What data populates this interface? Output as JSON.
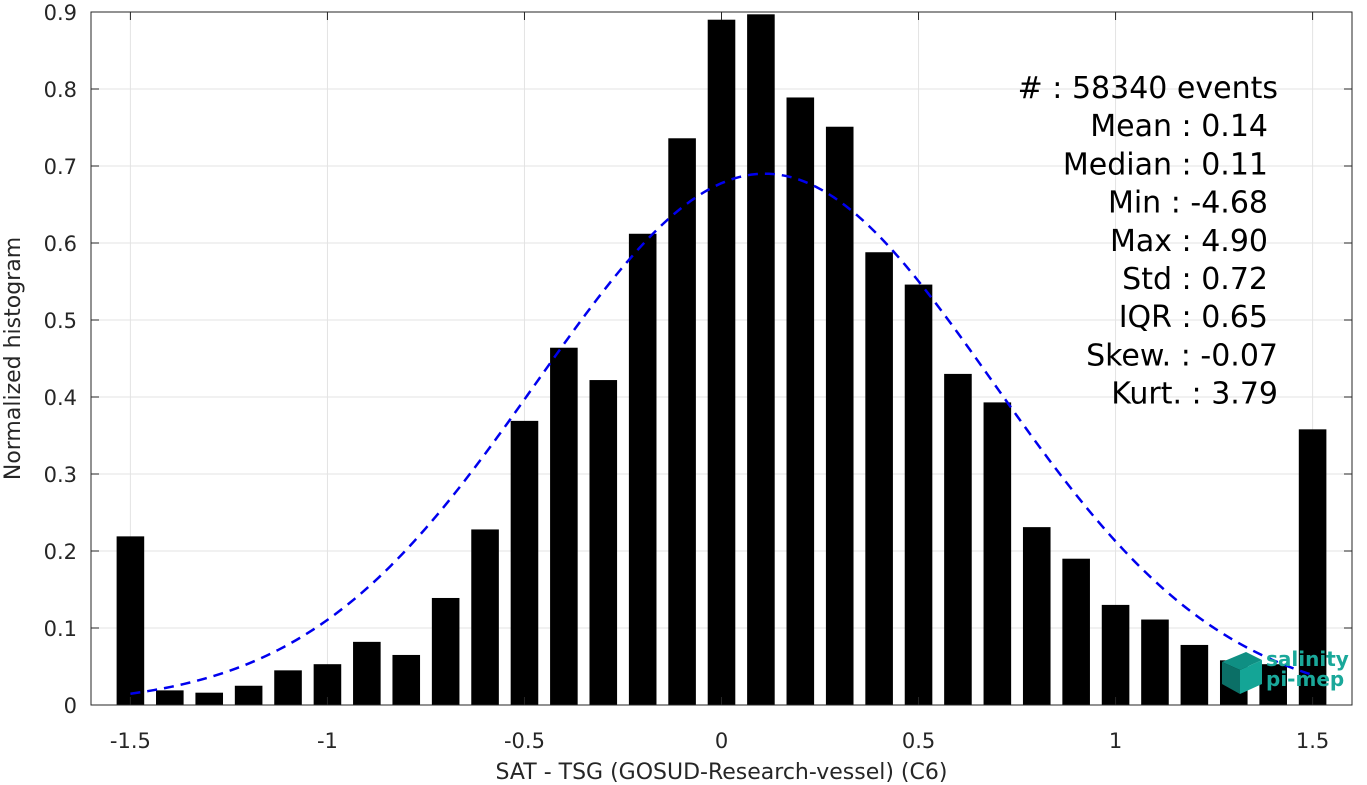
{
  "chart_data": {
    "type": "bar",
    "xlabel": "SAT - TSG (GOSUD-Research-vessel) (C6)",
    "ylabel": "Normalized histogram",
    "xlim": [
      -1.6,
      1.6
    ],
    "ylim": [
      0,
      0.9
    ],
    "x_ticks": [
      "-1.5",
      "-1",
      "-0.5",
      "0",
      "0.5",
      "1",
      "1.5"
    ],
    "x_tick_values": [
      -1.5,
      -1,
      -0.5,
      0,
      0.5,
      1,
      1.5
    ],
    "y_ticks": [
      "0",
      "0.1",
      "0.2",
      "0.3",
      "0.4",
      "0.5",
      "0.6",
      "0.7",
      "0.8",
      "0.9"
    ],
    "y_tick_values": [
      0,
      0.1,
      0.2,
      0.3,
      0.4,
      0.5,
      0.6,
      0.7,
      0.8,
      0.9
    ],
    "grid": true,
    "bar_width": 0.07,
    "bars": {
      "x": [
        -1.5,
        -1.4,
        -1.3,
        -1.2,
        -1.1,
        -1.0,
        -0.9,
        -0.8,
        -0.7,
        -0.6,
        -0.5,
        -0.4,
        -0.3,
        -0.2,
        -0.1,
        0.0,
        0.1,
        0.2,
        0.3,
        0.4,
        0.5,
        0.6,
        0.7,
        0.8,
        0.9,
        1.0,
        1.1,
        1.2,
        1.3,
        1.4,
        1.5
      ],
      "values": [
        0.219,
        0.019,
        0.016,
        0.025,
        0.045,
        0.053,
        0.082,
        0.065,
        0.139,
        0.228,
        0.369,
        0.464,
        0.422,
        0.612,
        0.736,
        0.89,
        0.897,
        0.789,
        0.751,
        0.588,
        0.546,
        0.43,
        0.393,
        0.231,
        0.19,
        0.13,
        0.111,
        0.078,
        0.058,
        0.053,
        0.358
      ],
      "color": "#000000"
    },
    "fit": {
      "type": "gaussian",
      "mean": 0.11,
      "std": 0.58,
      "peak": 0.69,
      "range": [
        -1.5,
        1.5
      ],
      "color": "#0000ee",
      "style": "dashed"
    },
    "legend": "top-right"
  },
  "stats": [
    {
      "label": "#  ",
      "value": ": 58340 events"
    },
    {
      "label": "Mean ",
      "value": ": 0.14"
    },
    {
      "label": "Median ",
      "value": ": 0.11"
    },
    {
      "label": "Min ",
      "value": ": -4.68"
    },
    {
      "label": "Max ",
      "value": ": 4.90"
    },
    {
      "label": "Std ",
      "value": ": 0.72"
    },
    {
      "label": "IQR ",
      "value": ": 0.65"
    },
    {
      "label": "Skew. ",
      "value": ": -0.07"
    },
    {
      "label": "Kurt. ",
      "value": ": 3.79"
    }
  ],
  "logo": {
    "line1": "salinity",
    "line2": "pi-mep",
    "color": "#1aa89a"
  }
}
